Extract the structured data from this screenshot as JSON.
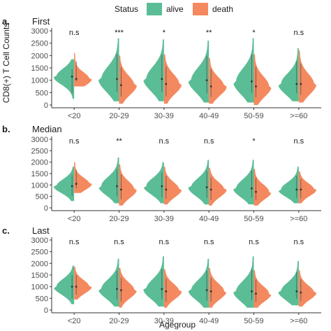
{
  "legend": {
    "title": "Status",
    "items": [
      {
        "label": "alive",
        "color": "#5bbd95"
      },
      {
        "label": "death",
        "color": "#f4895f"
      }
    ]
  },
  "ylabel": "CD8(+) T Cell Counts",
  "xlabel": "Agegroup",
  "chart_data": [
    {
      "type": "violin",
      "panel_letter": "a.",
      "title": "First",
      "categories": [
        "<20",
        "20-29",
        "30-39",
        "40-49",
        "50-59",
        ">=60"
      ],
      "yticks": [
        0,
        500,
        1000,
        1500,
        2000,
        2500,
        3000
      ],
      "ylim": [
        0,
        3000
      ],
      "significance": [
        "n.s",
        "***",
        "*",
        "**",
        "*",
        "n.s"
      ],
      "series": [
        {
          "name": "alive",
          "median": [
            1150,
            1050,
            1050,
            1000,
            950,
            850
          ],
          "range": [
            [
              250,
              1850
            ],
            [
              150,
              2700
            ],
            [
              150,
              2650
            ],
            [
              100,
              2600
            ],
            [
              100,
              2700
            ],
            [
              150,
              2300
            ]
          ]
        },
        {
          "name": "death",
          "median": [
            1050,
            800,
            850,
            750,
            750,
            850
          ],
          "range": [
            [
              750,
              2100
            ],
            [
              50,
              2000
            ],
            [
              50,
              2050
            ],
            [
              50,
              1900
            ],
            [
              0,
              2050
            ],
            [
              100,
              2200
            ]
          ]
        }
      ]
    },
    {
      "type": "violin",
      "panel_letter": "b.",
      "title": "Median",
      "categories": [
        "<20",
        "20-29",
        "30-39",
        "40-49",
        "50-59",
        ">=60"
      ],
      "yticks": [
        0,
        500,
        1000,
        1500,
        2000,
        2500,
        3000
      ],
      "ylim": [
        0,
        3000
      ],
      "significance": [
        "n.s",
        "**",
        "n.s",
        "n.s",
        "*",
        "n.s"
      ],
      "series": [
        {
          "name": "alive",
          "median": [
            950,
            950,
            950,
            900,
            850,
            800
          ],
          "range": [
            [
              300,
              1800
            ],
            [
              200,
              2200
            ],
            [
              200,
              2000
            ],
            [
              150,
              2100
            ],
            [
              150,
              2100
            ],
            [
              200,
              1800
            ]
          ]
        },
        {
          "name": "death",
          "median": [
            1050,
            800,
            800,
            800,
            700,
            800
          ],
          "range": [
            [
              650,
              2000
            ],
            [
              100,
              1900
            ],
            [
              150,
              1800
            ],
            [
              100,
              1750
            ],
            [
              100,
              1700
            ],
            [
              200,
              1600
            ]
          ]
        }
      ]
    },
    {
      "type": "violin",
      "panel_letter": "c.",
      "title": "Last",
      "categories": [
        "<20",
        "20-29",
        "30-39",
        "40-49",
        "50-59",
        ">=60"
      ],
      "yticks": [
        0,
        500,
        1000,
        1500,
        2000,
        2500,
        3000
      ],
      "ylim": [
        0,
        3000
      ],
      "significance": [
        "n.s",
        "n.s",
        "n.s",
        "n.s",
        "n.s",
        "n.s"
      ],
      "series": [
        {
          "name": "alive",
          "median": [
            1000,
            900,
            900,
            850,
            800,
            800
          ],
          "range": [
            [
              250,
              1900
            ],
            [
              150,
              2200
            ],
            [
              150,
              2300
            ],
            [
              100,
              2200
            ],
            [
              100,
              2300
            ],
            [
              200,
              2100
            ]
          ]
        },
        {
          "name": "death",
          "median": [
            1000,
            850,
            800,
            800,
            700,
            750
          ],
          "range": [
            [
              450,
              1850
            ],
            [
              100,
              1800
            ],
            [
              100,
              1750
            ],
            [
              100,
              1800
            ],
            [
              100,
              1700
            ],
            [
              150,
              1700
            ]
          ]
        }
      ]
    }
  ]
}
